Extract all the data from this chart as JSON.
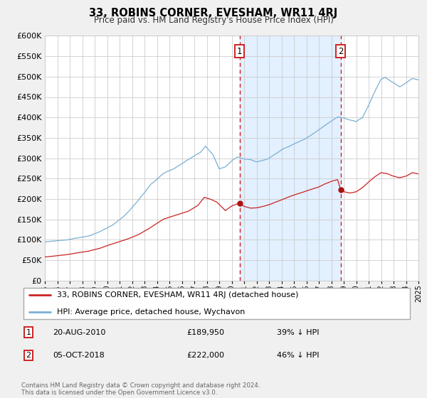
{
  "title": "33, ROBINS CORNER, EVESHAM, WR11 4RJ",
  "subtitle": "Price paid vs. HM Land Registry's House Price Index (HPI)",
  "background_color": "#f0f0f0",
  "plot_bg_color": "#ffffff",
  "grid_color": "#cccccc",
  "hpi_color": "#7ab0d4",
  "hpi_fill_color": "#ddeeff",
  "property_color": "#cc2222",
  "x_start_year": 1995,
  "x_end_year": 2025,
  "y_min": 0,
  "y_max": 600000,
  "y_ticks": [
    0,
    50000,
    100000,
    150000,
    200000,
    250000,
    300000,
    350000,
    400000,
    450000,
    500000,
    550000,
    600000
  ],
  "sale1_year": 2010.63,
  "sale1_value": 189950,
  "sale1_label": "1",
  "sale1_date": "20-AUG-2010",
  "sale1_price": "£189,950",
  "sale1_pct": "39% ↓ HPI",
  "sale2_year": 2018.76,
  "sale2_value": 222000,
  "sale2_label": "2",
  "sale2_date": "05-OCT-2018",
  "sale2_price": "£222,000",
  "sale2_pct": "46% ↓ HPI",
  "legend_property": "33, ROBINS CORNER, EVESHAM, WR11 4RJ (detached house)",
  "legend_hpi": "HPI: Average price, detached house, Wychavon",
  "footnote": "Contains HM Land Registry data © Crown copyright and database right 2024.\nThis data is licensed under the Open Government Licence v3.0."
}
